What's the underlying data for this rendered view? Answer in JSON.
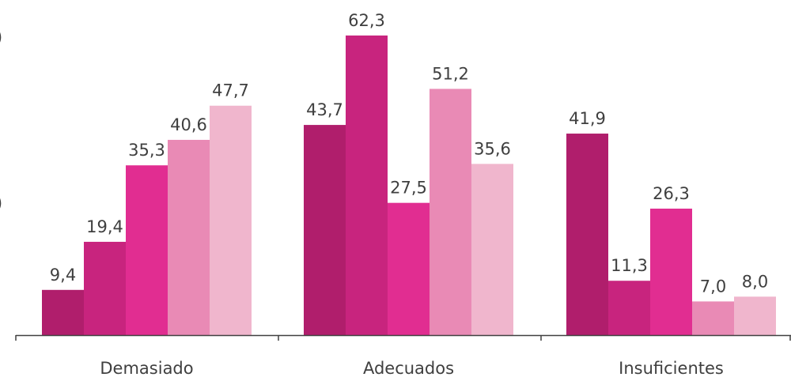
{
  "chart_data": {
    "type": "bar",
    "categories": [
      "Demasiado",
      "Adecuados",
      "Insuficientes"
    ],
    "series": [
      {
        "color": "#b01e6c",
        "values": [
          9.4,
          43.7,
          41.9
        ]
      },
      {
        "color": "#c8247e",
        "values": [
          19.4,
          62.3,
          11.3
        ]
      },
      {
        "color": "#e12d91",
        "values": [
          35.3,
          27.5,
          26.3
        ]
      },
      {
        "color": "#e98ab5",
        "values": [
          40.6,
          51.2,
          7.0
        ]
      },
      {
        "color": "#f0b6cd",
        "values": [
          47.7,
          35.6,
          8.0
        ]
      }
    ],
    "data_labels": [
      [
        "9,4",
        "43,7",
        "41,9"
      ],
      [
        "19,4",
        "62,3",
        "11,3"
      ],
      [
        "35,3",
        "27,5",
        "26,3"
      ],
      [
        "40,6",
        "51,2",
        "7,0"
      ],
      [
        "47,7",
        "35,6",
        "8,0"
      ]
    ],
    "ylim": [
      0,
      70
    ],
    "grid": false,
    "legend": "none"
  },
  "edge_marks": [
    ")",
    ")"
  ]
}
